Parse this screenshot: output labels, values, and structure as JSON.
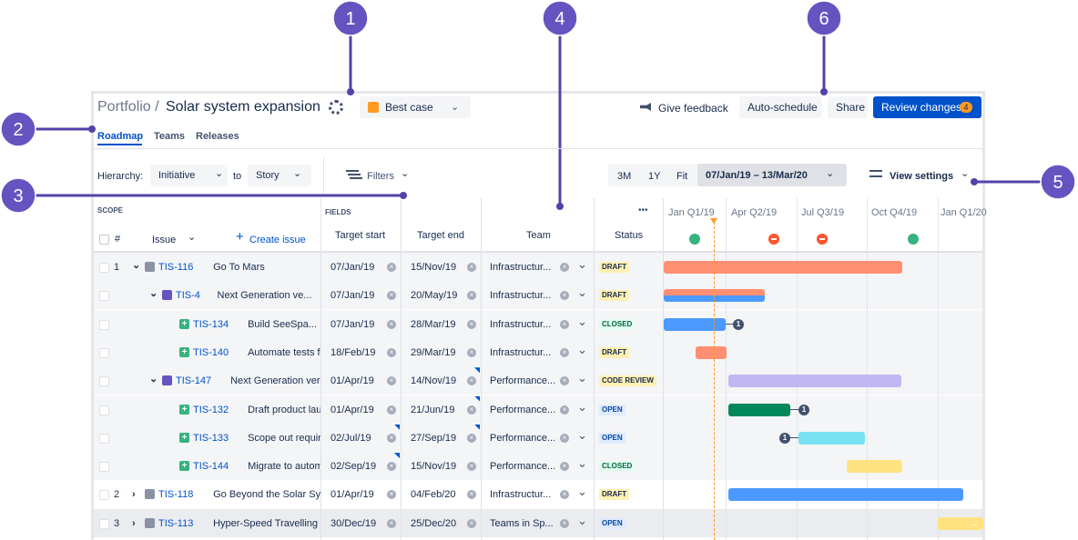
{
  "callouts": [
    "1",
    "2",
    "3",
    "4",
    "5",
    "6"
  ],
  "header": {
    "breadcrumb": "Portfolio /",
    "title": "Solar system expansion",
    "scenario": "Best case",
    "feedback": "Give feedback",
    "auto_schedule": "Auto-schedule",
    "share": "Share",
    "review": "Review changes",
    "review_count": "4"
  },
  "tabs": [
    "Roadmap",
    "Teams",
    "Releases"
  ],
  "toolbar": {
    "hierarchy_label": "Hierarchy:",
    "from": "Initiative",
    "to_label": "to",
    "to": "Story",
    "filters": "Filters",
    "zoom": [
      "3M",
      "1Y",
      "Fit"
    ],
    "range": "07/Jan/19 – 13/Mar/20",
    "view_settings": "View settings"
  },
  "table": {
    "scope": "SCOPE",
    "fields": "FIELDS",
    "more": "•••",
    "number": "#",
    "issue": "Issue",
    "create": "Create issue",
    "columns": [
      "Target start",
      "Target end",
      "Team",
      "Status"
    ],
    "quarters": [
      "Jan Q1/19",
      "Apr Q2/19",
      "Jul Q3/19",
      "Oct Q4/19",
      "Jan Q1/20"
    ],
    "rows": [
      {
        "number": "1",
        "key": "TIS-116",
        "summary": "Go To Mars",
        "start": "07/Jan/19",
        "end": "15/Nov/19",
        "team": "Infrastructur...",
        "status": "DRAFT"
      },
      {
        "key": "TIS-4",
        "summary": "Next Generation ve...",
        "start": "07/Jan/19",
        "end": "20/May/19",
        "team": "Infrastructur...",
        "status": "DRAFT"
      },
      {
        "key": "TIS-134",
        "summary": "Build SeeSpa...",
        "start": "07/Jan/19",
        "end": "28/Mar/19",
        "team": "Infrastructur...",
        "status": "CLOSED",
        "badge": "1"
      },
      {
        "key": "TIS-140",
        "summary": "Automate tests fo",
        "start": "18/Feb/19",
        "end": "29/Mar/19",
        "team": "Infrastructur...",
        "status": "DRAFT"
      },
      {
        "key": "TIS-147",
        "summary": "Next Generation versi",
        "start": "01/Apr/19",
        "end": "14/Nov/19",
        "team": "Performance...",
        "status": "CODE REVIEW"
      },
      {
        "key": "TIS-132",
        "summary": "Draft product laur",
        "start": "01/Apr/19",
        "end": "21/Jun/19",
        "team": "Performance...",
        "status": "OPEN",
        "badge": "1"
      },
      {
        "key": "TIS-133",
        "summary": "Scope out require",
        "start": "02/Jul/19",
        "end": "27/Sep/19",
        "team": "Performance...",
        "status": "OPEN",
        "badge": "1"
      },
      {
        "key": "TIS-144",
        "summary": "Migrate to automa",
        "start": "02/Sep/19",
        "end": "15/Nov/19",
        "team": "Performance...",
        "status": "CLOSED"
      },
      {
        "number": "2",
        "key": "TIS-118",
        "summary": "Go Beyond the Solar Syst",
        "start": "01/Apr/19",
        "end": "04/Feb/20",
        "team": "Infrastructur...",
        "status": "DRAFT"
      },
      {
        "number": "3",
        "key": "TIS-113",
        "summary": "Hyper-Speed Travelling",
        "start": "30/Dec/19",
        "end": "25/Dec/20",
        "team": "Teams in Sp...",
        "status": "OPEN"
      }
    ]
  }
}
